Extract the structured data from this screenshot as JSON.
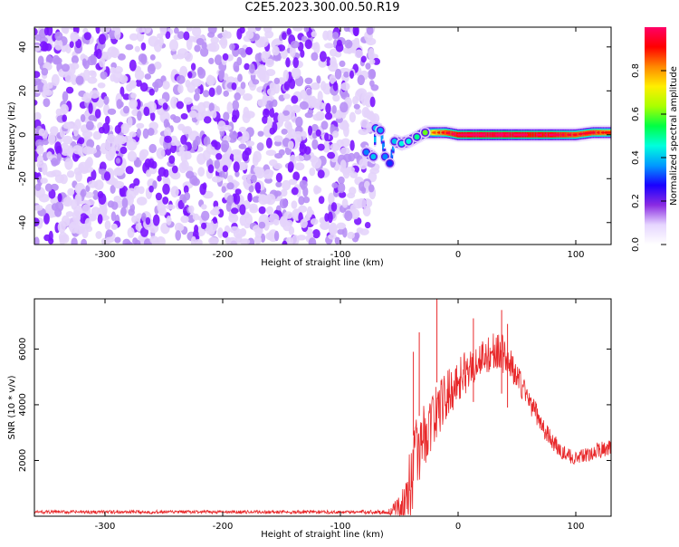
{
  "figure": {
    "title": "C2E5.2023.300.00.50.R19"
  },
  "chart_data": [
    {
      "type": "heatmap",
      "xlabel": "Height of straight line (km)",
      "ylabel": "Frequency (Hz)",
      "xlim": [
        -360,
        130
      ],
      "ylim": [
        -50,
        49
      ],
      "xticks": [
        -300,
        -200,
        -100,
        0,
        100
      ],
      "yticks": [
        -40,
        -20,
        0,
        20,
        40
      ],
      "colorbar": {
        "label": "Normalized spectral amplitude",
        "range": [
          0,
          1
        ],
        "ticks": [
          0.0,
          0.2,
          0.4,
          0.6,
          0.8
        ],
        "colormap": [
          "#ffffff",
          "#e6d6ff",
          "#8a2be2",
          "#1a00ff",
          "#0099ff",
          "#00ffdd",
          "#00ff44",
          "#aaff00",
          "#ffee00",
          "#ff8800",
          "#ff0000",
          "#ff0066"
        ]
      },
      "noise_region": {
        "x": [
          -360,
          -70
        ],
        "y": [
          -50,
          49
        ],
        "amplitude_range": [
          0.0,
          0.12
        ]
      },
      "signal_track": [
        {
          "x": -78,
          "y": -8,
          "amplitude": 0.35
        },
        {
          "x": -72,
          "y": -10,
          "amplitude": 0.4
        },
        {
          "x": -70,
          "y": 3,
          "amplitude": 0.4
        },
        {
          "x": -66,
          "y": 2,
          "amplitude": 0.38
        },
        {
          "x": -62,
          "y": -10,
          "amplitude": 0.35
        },
        {
          "x": -58,
          "y": -13,
          "amplitude": 0.3
        },
        {
          "x": -54,
          "y": -3,
          "amplitude": 0.4
        },
        {
          "x": -48,
          "y": -4,
          "amplitude": 0.45
        },
        {
          "x": -42,
          "y": -3,
          "amplitude": 0.45
        },
        {
          "x": -35,
          "y": -1,
          "amplitude": 0.5
        },
        {
          "x": -28,
          "y": 1,
          "amplitude": 0.6
        },
        {
          "x": -20,
          "y": 1,
          "amplitude": 0.75
        },
        {
          "x": -10,
          "y": 1,
          "amplitude": 0.85
        },
        {
          "x": 0,
          "y": 0,
          "amplitude": 0.9
        },
        {
          "x": 20,
          "y": 0,
          "amplitude": 0.95
        },
        {
          "x": 40,
          "y": 0,
          "amplitude": 0.95
        },
        {
          "x": 60,
          "y": 0,
          "amplitude": 0.9
        },
        {
          "x": 80,
          "y": 0,
          "amplitude": 0.9
        },
        {
          "x": 100,
          "y": 0,
          "amplitude": 0.85
        },
        {
          "x": 115,
          "y": 1,
          "amplitude": 0.85
        },
        {
          "x": 130,
          "y": 1,
          "amplitude": 0.8
        }
      ]
    },
    {
      "type": "line",
      "xlabel": "Height of straight line (km)",
      "ylabel": "SNR (10 * v/v)",
      "xlim": [
        -360,
        130
      ],
      "ylim": [
        0,
        7800
      ],
      "xticks": [
        -300,
        -200,
        -100,
        0,
        100
      ],
      "yticks": [
        2000,
        4000,
        6000
      ],
      "grid": false,
      "series": [
        {
          "color": "#e8282a",
          "x": [
            -360,
            -300,
            -200,
            -100,
            -60,
            -48,
            -45,
            -42,
            -38,
            -35,
            -30,
            -25,
            -20,
            -15,
            -10,
            -5,
            0,
            5,
            10,
            15,
            20,
            25,
            30,
            35,
            40,
            45,
            50,
            55,
            60,
            65,
            70,
            75,
            80,
            85,
            90,
            95,
            100,
            105,
            110,
            115,
            120,
            125,
            130
          ],
          "y": [
            150,
            150,
            150,
            150,
            150,
            300,
            600,
            1100,
            1700,
            2300,
            2800,
            3200,
            3600,
            4000,
            4300,
            4600,
            4900,
            5100,
            5300,
            5500,
            5650,
            5800,
            5900,
            6000,
            5700,
            5400,
            5000,
            4600,
            4200,
            3800,
            3400,
            3000,
            2700,
            2450,
            2250,
            2150,
            2100,
            2150,
            2200,
            2300,
            2350,
            2450,
            2550
          ],
          "noise_amplitude": [
            60,
            60,
            60,
            60,
            80,
            500,
            900,
            1300,
            1400,
            1300,
            1200,
            1100,
            1100,
            1000,
            900,
            850,
            800,
            800,
            750,
            700,
            700,
            700,
            700,
            700,
            650,
            600,
            550,
            500,
            450,
            400,
            380,
            350,
            330,
            300,
            280,
            260,
            250,
            250,
            260,
            280,
            300,
            320,
            340
          ],
          "peaks": [
            {
              "x": -38,
              "y": 5900
            },
            {
              "x": -33,
              "y": 6600
            },
            {
              "x": -18,
              "y": 7800
            },
            {
              "x": 13,
              "y": 7100
            },
            {
              "x": 37,
              "y": 7400
            },
            {
              "x": 42,
              "y": 6900
            }
          ]
        }
      ]
    }
  ]
}
